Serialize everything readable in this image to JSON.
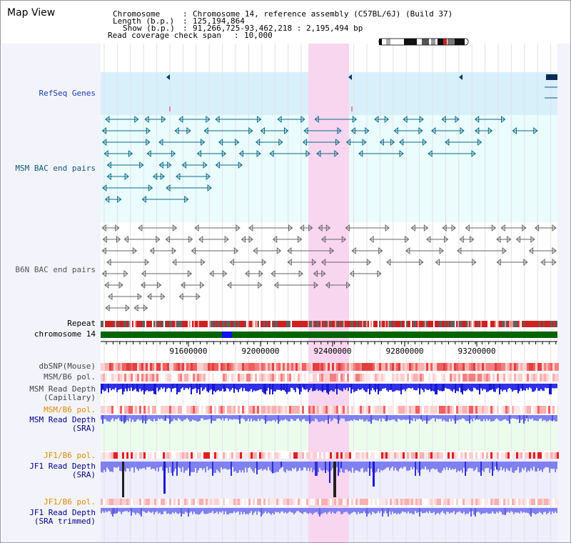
{
  "app": {
    "title": "Map View"
  },
  "header": {
    "chromosome_key": "Chromosome",
    "chromosome_value": "Chromosome 14, reference assembly (C57BL/6J) (Build 37)",
    "length_key": "Length (b.p.)",
    "length_value": "125,194,864",
    "show_key": "Show (b.p.)",
    "show_value": "91,266,725-93,462,218 : 2,195,494 bp",
    "coverage_key": "Read coverage check span",
    "coverage_value": "10,000"
  },
  "tracks": {
    "refseq": "RefSeq Genes",
    "msm_bac": "MSM BAC end pairs",
    "b6n_bac": "B6N BAC end pairs",
    "repeat": "Repeat",
    "chromosome": "chromosome 14",
    "dbsnp": "dbSNP(Mouse)",
    "msm_b6_pol_1": "MSM/B6 pol.",
    "msm_depth_cap_1": "MSM Read Depth",
    "msm_depth_cap_2": "(Capillary)",
    "msm_b6_pol_2": "MSM/B6 pol.",
    "msm_depth_sra_1": "MSM Read Depth",
    "msm_depth_sra_2": "(SRA)",
    "jf1_b6_pol_1": "JF1/B6 pol.",
    "jf1_depth_sra_1": "JF1 Read Depth",
    "jf1_depth_sra_2": "(SRA)",
    "jf1_b6_pol_2": "JF1/B6 pol.",
    "jf1_depth_trim_1": "JF1 Read Depth",
    "jf1_depth_trim_2": "(SRA trimmed)"
  },
  "axis": {
    "ticks": [
      "91600000",
      "92000000",
      "92400000",
      "92800000",
      "93200000"
    ]
  },
  "colors": {
    "refseq_bg": "#d8f0fa",
    "bac_bg": "#eafcfc",
    "highlight": "#f8d6f0",
    "msm_label": "#0a5a7a",
    "sra_label": "#00008b",
    "pol_label": "#e08a00",
    "chromosome_bar": "#006400"
  }
}
